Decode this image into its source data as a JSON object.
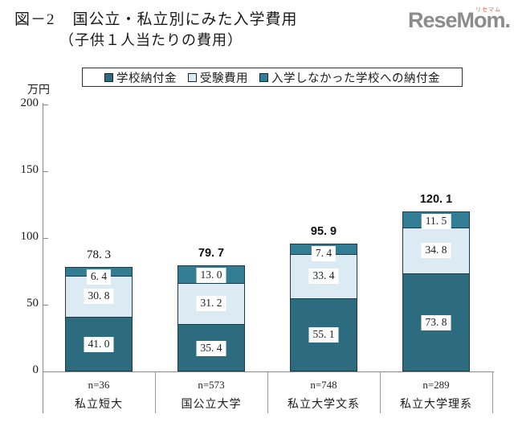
{
  "title": {
    "fig_label": "図－2",
    "line1": "国公立・私立別にみた入学費用",
    "line2": "（子供１人当たりの費用）"
  },
  "logo": {
    "text": "ReseMom.",
    "ruby": "リセマム"
  },
  "legend": {
    "items": [
      {
        "label": "学校納付金",
        "color": "#2d6b7e"
      },
      {
        "label": "受験費用",
        "color": "#dcebf3"
      },
      {
        "label": "入学しなかった学校への納付金",
        "color": "#337d94"
      }
    ]
  },
  "axis": {
    "unit": "万円",
    "ticks": [
      0,
      50,
      100,
      150,
      200
    ],
    "max": 200
  },
  "chart_data": {
    "type": "bar",
    "stacked": true,
    "title": "図－2 国公立・私立別にみた入学費用（子供１人当たりの費用）",
    "categories": [
      "私立短大",
      "国公立大学",
      "私立大学文系",
      "私立大学理系"
    ],
    "n_labels": [
      "n=36",
      "n=573",
      "n=748",
      "n=289"
    ],
    "series": [
      {
        "name": "学校納付金",
        "color": "#2d6b7e",
        "values": [
          41.0,
          35.4,
          55.1,
          73.8
        ]
      },
      {
        "name": "受験費用",
        "color": "#dcebf3",
        "values": [
          30.8,
          31.2,
          33.4,
          34.8
        ]
      },
      {
        "name": "入学しなかった学校への納付金",
        "color": "#337d94",
        "values": [
          6.4,
          13.0,
          7.4,
          11.5
        ]
      }
    ],
    "totals": [
      78.3,
      79.7,
      95.9,
      120.1
    ],
    "totals_bold": [
      false,
      true,
      true,
      true
    ],
    "xlabel": "",
    "ylabel": "万円",
    "ylim": [
      0,
      200
    ],
    "grid": false,
    "legend_position": "top"
  }
}
